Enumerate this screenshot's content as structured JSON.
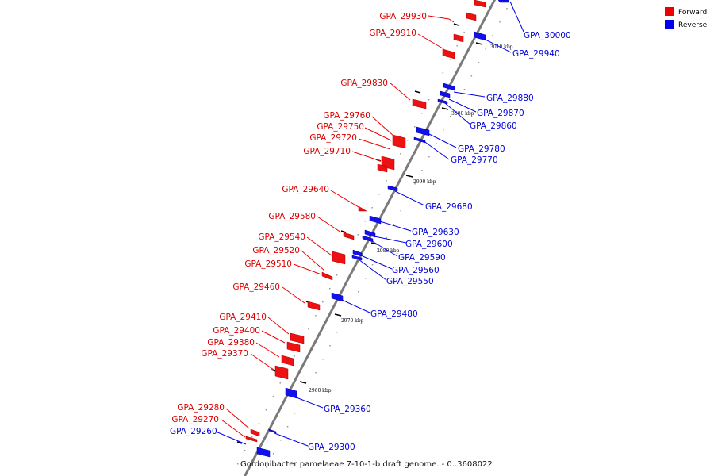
{
  "caption": "Gordonibacter pamelaeae 7-10-1-b draft genome. - 0..3608022",
  "legend": {
    "forward_label": "Forward",
    "reverse_label": "Reverse",
    "forward_color": "#ee0000",
    "reverse_color": "#0000ee"
  },
  "scale_ticks": [
    "3010 kbp",
    "3000 kbp",
    "2990 kbp",
    "2980 kbp",
    "2970 kbp",
    "2960 kbp"
  ],
  "forward_genes": [
    "GPA_29930",
    "GPA_29910",
    "GPA_29830",
    "GPA_29760",
    "GPA_29750",
    "GPA_29720",
    "GPA_29710",
    "GPA_29640",
    "GPA_29580",
    "GPA_29540",
    "GPA_29520",
    "GPA_29510",
    "GPA_29460",
    "GPA_29410",
    "GPA_29400",
    "GPA_29380",
    "GPA_29370",
    "GPA_29280",
    "GPA_29270"
  ],
  "reverse_genes": [
    "GPA_30000",
    "GPA_29940",
    "GPA_29880",
    "GPA_29870",
    "GPA_29860",
    "GPA_29780",
    "GPA_29770",
    "GPA_29680",
    "GPA_29630",
    "GPA_29600",
    "GPA_29590",
    "GPA_29560",
    "GPA_29550",
    "GPA_29480",
    "GPA_29360",
    "GPA_29300",
    "GPA_29260"
  ]
}
